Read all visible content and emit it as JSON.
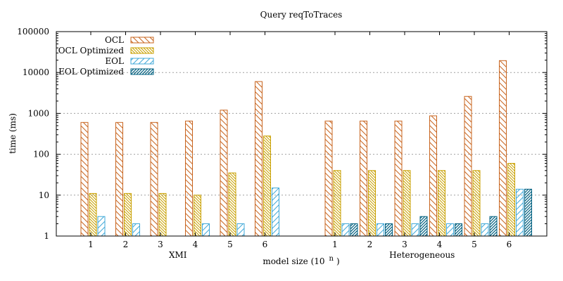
{
  "chart_data": {
    "type": "bar",
    "title": "Query reqToTraces",
    "ylabel": "time (ms)",
    "xlabel": "model size (10",
    "xlabel_superscript": "n",
    "xlabel_suffix": ")",
    "yscale": "log",
    "ylim": [
      1,
      100000
    ],
    "yticks": [
      1,
      10,
      100,
      1000,
      10000,
      100000
    ],
    "ytick_labels": [
      "1",
      "10",
      "100",
      "1000",
      "10000",
      "100000"
    ],
    "grid": true,
    "legend_position": "top-left",
    "series": [
      {
        "name": "OCL",
        "color": "#c8641e",
        "pattern": "back-diagonal-sparse"
      },
      {
        "name": "OCL Optimized",
        "color": "#c8a000",
        "pattern": "back-diagonal-dense"
      },
      {
        "name": "EOL",
        "color": "#40a8d8",
        "pattern": "forward-diagonal-sparse"
      },
      {
        "name": "EOL Optimized",
        "color": "#006080",
        "pattern": "forward-diagonal-dense"
      }
    ],
    "groups": [
      {
        "label": "XMI",
        "categories": [
          "1",
          "2",
          "3",
          "4",
          "5",
          "6"
        ],
        "values": [
          [
            600,
            11,
            3,
            null
          ],
          [
            600,
            11,
            2,
            null
          ],
          [
            600,
            11,
            null,
            null
          ],
          [
            650,
            10,
            2,
            null
          ],
          [
            1200,
            35,
            2,
            null
          ],
          [
            6000,
            280,
            15,
            null
          ]
        ]
      },
      {
        "label": "Heterogeneous",
        "categories": [
          "1",
          "2",
          "3",
          "4",
          "5",
          "6"
        ],
        "values": [
          [
            650,
            40,
            2,
            2
          ],
          [
            650,
            40,
            2,
            2
          ],
          [
            650,
            40,
            2,
            3
          ],
          [
            870,
            40,
            2,
            2
          ],
          [
            2600,
            40,
            2,
            3
          ],
          [
            19500,
            60,
            14,
            14
          ]
        ]
      }
    ]
  }
}
